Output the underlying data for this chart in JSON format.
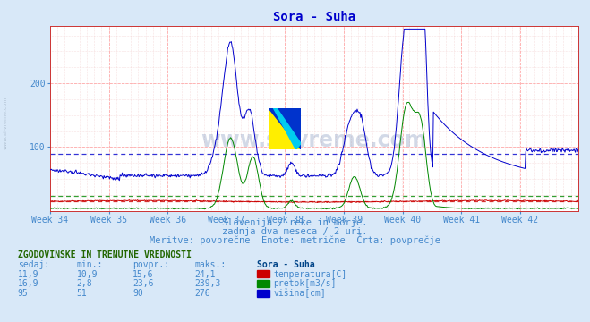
{
  "title": "Sora - Suha",
  "title_color": "#0000cc",
  "bg_color": "#d8e8f8",
  "plot_bg_color": "#ffffff",
  "grid_color_major": "#ffaaaa",
  "grid_color_minor": "#eeeeee",
  "weeks": [
    "Week 34",
    "Week 35",
    "Week 36",
    "Week 37",
    "Week 38",
    "Week 39",
    "Week 40",
    "Week 41",
    "Week 42"
  ],
  "n_points": 756,
  "ylim": [
    0,
    290
  ],
  "yticks": [
    100,
    200
  ],
  "temp_color": "#cc0000",
  "pretok_color": "#008800",
  "visina_color": "#0000cc",
  "temp_avg_line": 15.6,
  "pretok_avg_line": 23.6,
  "visina_avg_line": 90,
  "watermark_text": "www.si-vreme.com",
  "subtitle1": "Slovenija / reke in morje.",
  "subtitle2": "zadnja dva meseca / 2 uri.",
  "subtitle3": "Meritve: povprečne  Enote: metrične  Črta: povprečje",
  "table_header": "ZGODOVINSKE IN TRENUTNE VREDNOSTI",
  "col_headers": [
    "sedaj:",
    "min.:",
    "povpr.:",
    "maks.:"
  ],
  "row1": [
    "11,9",
    "10,9",
    "15,6",
    "24,1"
  ],
  "row2": [
    "16,9",
    "2,8",
    "23,6",
    "239,3"
  ],
  "row3": [
    "95",
    "51",
    "90",
    "276"
  ],
  "legend_labels": [
    "temperatura[C]",
    "pretok[m3/s]",
    "višina[cm]"
  ],
  "legend_station": "Sora - Suha",
  "font_color": "#4488cc",
  "sidebar_text": "www.si-vreme.com"
}
